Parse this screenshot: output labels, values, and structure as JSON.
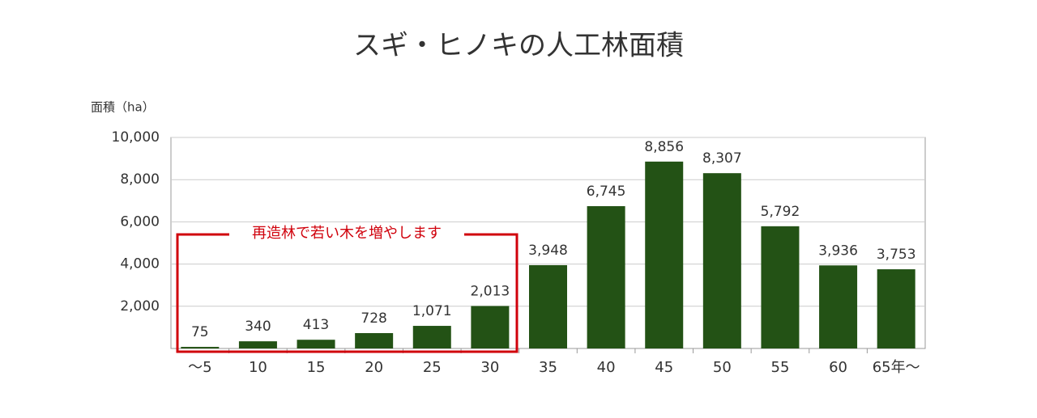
{
  "chart_data": {
    "type": "bar",
    "title": "スギ・ヒノキの人工林面積",
    "y_label": "面積（ha）",
    "annotation": "再造林で若い木を増やします",
    "categories": [
      "〜5",
      "10",
      "15",
      "20",
      "25",
      "30",
      "35",
      "40",
      "45",
      "50",
      "55",
      "60",
      "65年〜"
    ],
    "values": [
      75,
      340,
      413,
      728,
      1071,
      2013,
      3948,
      6745,
      8856,
      8307,
      5792,
      3936,
      3753
    ],
    "value_labels": [
      "75",
      "340",
      "413",
      "728",
      "1,071",
      "2,013",
      "3,948",
      "6,745",
      "8,856",
      "8,307",
      "5,792",
      "3,936",
      "3,753"
    ],
    "color": "#235215",
    "ylim": [
      0,
      10000
    ],
    "yticks": [
      {
        "value": 2000,
        "label": "2,000"
      },
      {
        "value": 4000,
        "label": "4,000"
      },
      {
        "value": 6000,
        "label": "6,000"
      },
      {
        "value": 8000,
        "label": "8,000"
      },
      {
        "value": 10000,
        "label": "10,000"
      }
    ],
    "grid": true
  }
}
